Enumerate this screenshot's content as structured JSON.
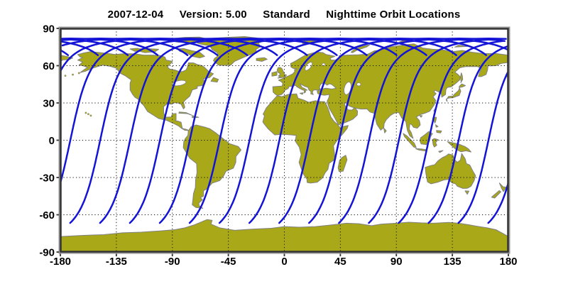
{
  "title": {
    "date": "2007-12-04",
    "version": "Version: 5.00",
    "mode": "Standard",
    "main": "Nighttime Orbit Locations"
  },
  "chart_data": {
    "type": "line",
    "title": "2007-12-04 Version: 5.00 Standard Nighttime Orbit Locations",
    "projection": "equirectangular",
    "xlabel": "",
    "ylabel": "",
    "xlim": [
      -180,
      180
    ],
    "ylim": [
      -90,
      90
    ],
    "x_ticks": [
      -180,
      -135,
      -90,
      -45,
      0,
      45,
      90,
      135,
      180
    ],
    "y_ticks": [
      90,
      60,
      30,
      0,
      -30,
      -60,
      -90
    ],
    "grid": true,
    "grid_lon_step_deg": 45,
    "grid_lat_step_deg": 30,
    "orbit": {
      "inclination_deg": 98.2,
      "westward_drift_deg_per_orbit": 24.75,
      "equator_crossing_spacing_deg": 24.0,
      "first_descending_node_lon_deg": -172.0,
      "num_tracks": 15,
      "max_latitude_deg": 81.8,
      "south_cutoff_lat_deg": -65.6,
      "arg_lat_start_deg": 70,
      "arg_lat_end_deg": 248
    },
    "colors": {
      "track": "#1414d6",
      "land": "#a8a818",
      "coast": "#808080",
      "ocean": "#ffffff",
      "grid": "#111111",
      "frame_dark": "#333333",
      "frame_light": "#999999",
      "label": "#000000"
    }
  }
}
